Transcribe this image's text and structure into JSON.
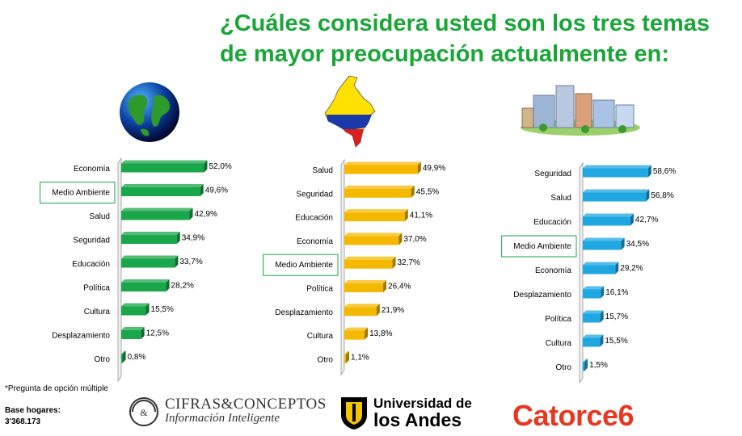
{
  "title": "¿Cuáles considera usted son los tres temas de mayor preocupación actualmente en:",
  "footnote": "*Pregunta de opción múltiple",
  "base_label": "Base hogares:",
  "base_value": "3'368.173",
  "logos": {
    "cifras_line1": "CIFRAS&CONCEPTOS",
    "cifras_line2": "Información Inteligente",
    "andes_line1": "Universidad de",
    "andes_line2": "los Andes",
    "catorce": "Catorce6"
  },
  "chart_data": [
    {
      "type": "bar",
      "orientation": "horizontal",
      "icon": "globe-icon",
      "color": "#1aa64a",
      "categories": [
        "Economía",
        "Medio Ambiente",
        "Salud",
        "Seguridad",
        "Educación",
        "Política",
        "Cultura",
        "Desplazamiento",
        "Otro"
      ],
      "values": [
        52.0,
        49.6,
        42.9,
        34.9,
        33.7,
        28.2,
        15.5,
        12.5,
        0.8
      ],
      "labels": [
        "52,0%",
        "49,6%",
        "42,9%",
        "34,9%",
        "33,7%",
        "28,2%",
        "15,5%",
        "12,5%",
        "0,8%"
      ],
      "highlight": "Medio Ambiente"
    },
    {
      "type": "bar",
      "orientation": "horizontal",
      "icon": "colombia-map-icon",
      "color": "#f5b800",
      "categories": [
        "Salud",
        "Seguridad",
        "Educación",
        "Economía",
        "Medio Ambiente",
        "Política",
        "Desplazamiento",
        "Cultura",
        "Otro"
      ],
      "values": [
        49.9,
        45.5,
        41.1,
        37.0,
        32.7,
        26.4,
        21.9,
        13.8,
        1.1
      ],
      "labels": [
        "49,9%",
        "45,5%",
        "41,1%",
        "37,0%",
        "32,7%",
        "26,4%",
        "21,9%",
        "13,8%",
        "1,1%"
      ],
      "highlight": "Medio Ambiente"
    },
    {
      "type": "bar",
      "orientation": "horizontal",
      "icon": "city-icon",
      "color": "#1ea7e1",
      "categories": [
        "Seguridad",
        "Salud",
        "Educación",
        "Medio Ambiente",
        "Economía",
        "Desplazamiento",
        "Política",
        "Cultura",
        "Otro"
      ],
      "values": [
        58.6,
        56.8,
        42.7,
        34.5,
        29.2,
        16.1,
        15.7,
        15.5,
        1.5
      ],
      "labels": [
        "58,6%",
        "56,8%",
        "42,7%",
        "34,5%",
        "29,2%",
        "16,1%",
        "15,7%",
        "15,5%",
        "1,5%"
      ],
      "highlight": "Medio Ambiente"
    }
  ]
}
